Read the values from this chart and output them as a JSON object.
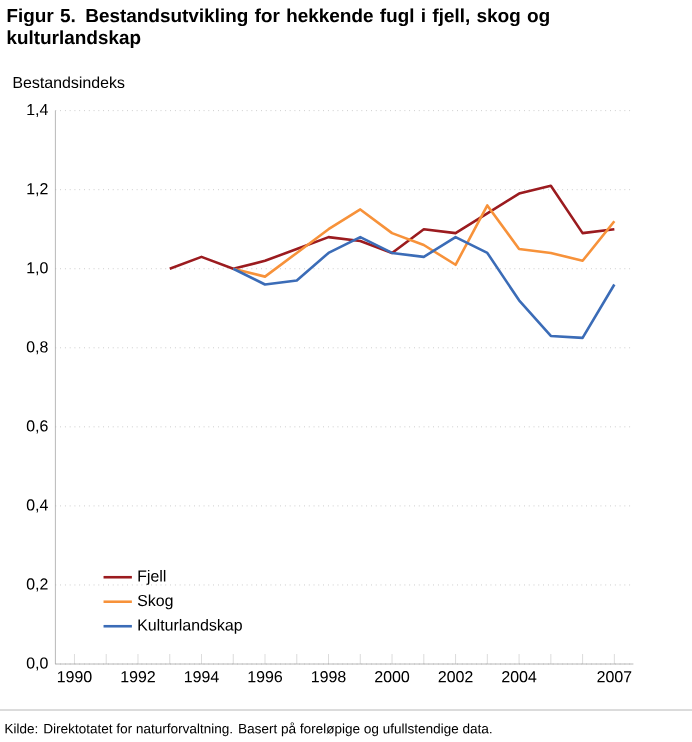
{
  "chart_data": {
    "type": "line",
    "title": "Figur 5. Bestandsutvikling for hekkende fugl i fjell, skog og kulturlandskap",
    "ylabel": "Bestandsindeks",
    "annotations": [
      "Kilde: Direktotatet for naturforvaltning. Basert på foreløpige og ufullstendige data."
    ],
    "series": [
      {
        "name": "Fjell",
        "color": "#9b1b1f",
        "x": [
          1993,
          1994,
          1995,
          1996,
          1997,
          1998,
          1999,
          2000,
          2001,
          2002,
          2003,
          2004,
          2005,
          2006,
          2007
        ],
        "values": [
          1.0,
          1.03,
          1.0,
          1.02,
          1.05,
          1.08,
          1.07,
          1.04,
          1.1,
          1.09,
          1.14,
          1.19,
          1.21,
          1.09,
          1.1
        ]
      },
      {
        "name": "Skog",
        "color": "#f7923a",
        "x": [
          1995,
          1996,
          1997,
          1998,
          1999,
          2000,
          2001,
          2002,
          2003,
          2004,
          2005,
          2006,
          2007
        ],
        "values": [
          1.0,
          0.98,
          1.04,
          1.1,
          1.15,
          1.09,
          1.06,
          1.01,
          1.16,
          1.05,
          1.04,
          1.02,
          1.12
        ]
      },
      {
        "name": "Kulturlandskap",
        "color": "#3b6cb7",
        "x": [
          1995,
          1996,
          1997,
          1998,
          1999,
          2000,
          2001,
          2002,
          2003,
          2004,
          2005,
          2006,
          2007
        ],
        "values": [
          1.0,
          0.96,
          0.97,
          1.04,
          1.08,
          1.04,
          1.03,
          1.08,
          1.04,
          0.92,
          0.83,
          0.825,
          0.96
        ]
      }
    ],
    "xlim": [
      1989.4,
      2007.6
    ],
    "xticks": [
      1990,
      {
        "value": 1991,
        "label": null
      },
      1992,
      {
        "value": 1993,
        "label": null
      },
      1994,
      {
        "value": 1995,
        "label": null
      },
      1996,
      {
        "value": 1997,
        "label": null
      },
      1998,
      {
        "value": 1999,
        "label": null
      },
      2000,
      {
        "value": 2001,
        "label": null
      },
      2002,
      {
        "value": 2003,
        "label": null
      },
      2004,
      {
        "value": 2005,
        "label": null
      },
      {
        "value": 2006,
        "label": null
      },
      2007
    ],
    "ylim": [
      0,
      1.4
    ],
    "yticks": [
      {
        "value": 0,
        "label": "0,0"
      },
      {
        "value": 0.2,
        "label": "0,2"
      },
      {
        "value": 0.4,
        "label": "0,4"
      },
      {
        "value": 0.6,
        "label": "0,6"
      },
      {
        "value": 0.8,
        "label": "0,8"
      },
      {
        "value": 1.0,
        "label": "1,0"
      },
      {
        "value": 1.2,
        "label": "1,2"
      },
      {
        "value": 1.4,
        "label": "1,4"
      }
    ],
    "grid": "y",
    "legend": "bottom left",
    "line_style": "solid",
    "marker": "none"
  }
}
